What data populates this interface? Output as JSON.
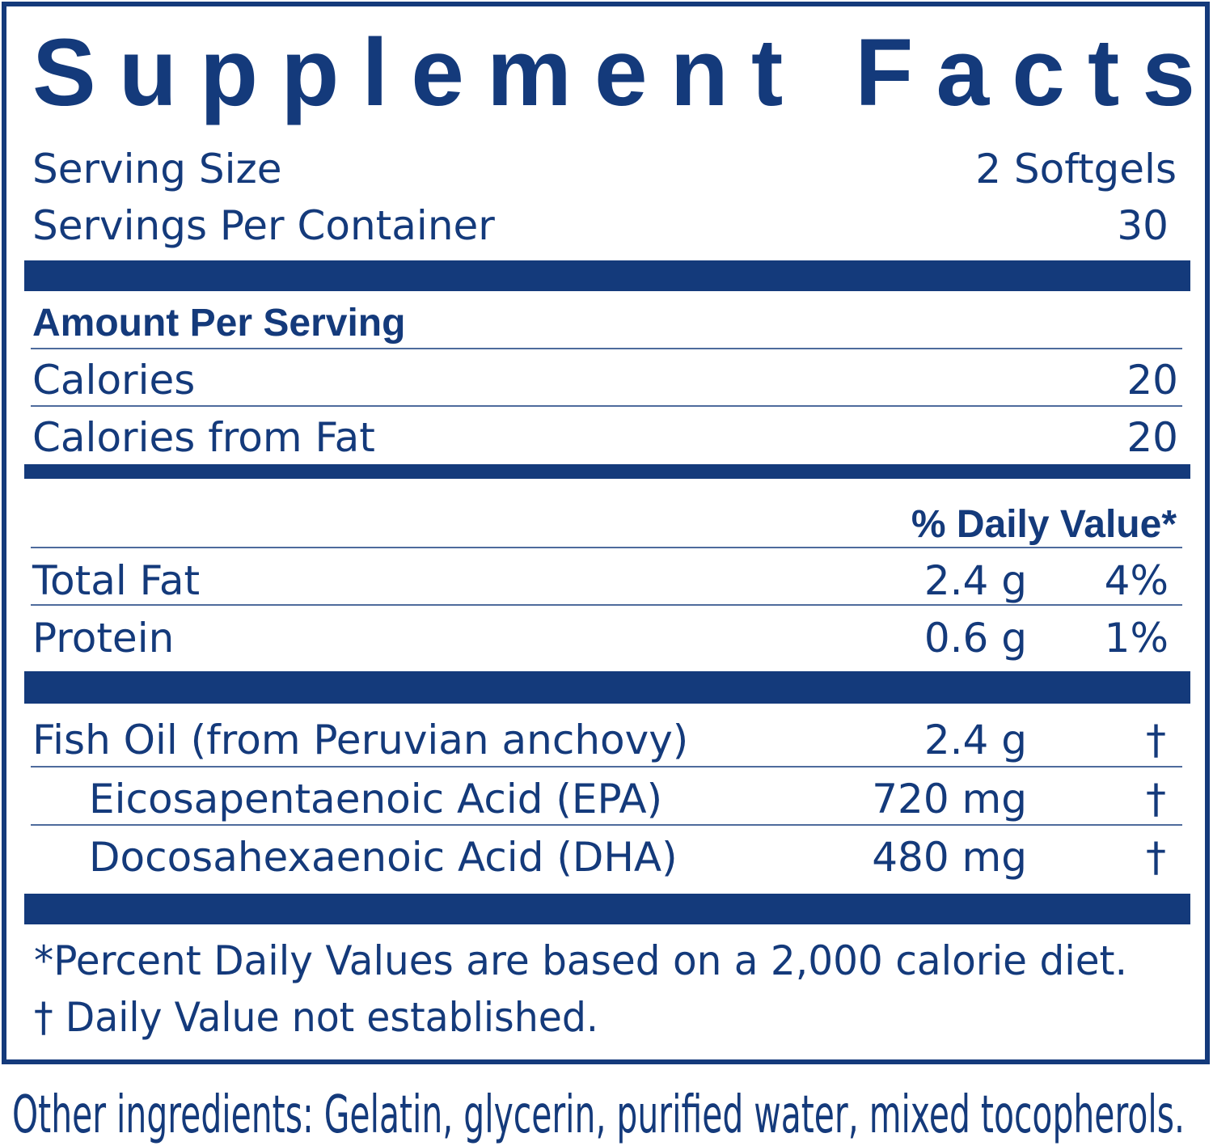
{
  "title": "Supplement Facts",
  "serving": {
    "size_label": "Serving Size",
    "size": "2 Softgels",
    "per_container_label": "Servings Per Container",
    "per_container": "30"
  },
  "amount_header": "Amount Per Serving",
  "calories": [
    {
      "label": "Calories",
      "amount": "20"
    },
    {
      "label": "Calories from Fat",
      "amount": "20"
    }
  ],
  "daily_value_header": "% Daily Value*",
  "nutrients": [
    {
      "label": "Total Fat",
      "amount": "2.4 g",
      "daily_value": "4%"
    },
    {
      "label": "Protein",
      "amount": "0.6 g",
      "daily_value": "1%"
    }
  ],
  "ingredients": {
    "main": {
      "label": "Fish Oil (from Peruvian anchovy)",
      "amount": "2.4 g",
      "daily_value": "†"
    },
    "sub": [
      {
        "label": "Eicosapentaenoic Acid (EPA)",
        "amount": "720 mg",
        "daily_value": "†"
      },
      {
        "label": "Docosahexaenoic Acid (DHA)",
        "amount": "480 mg",
        "daily_value": "†"
      }
    ]
  },
  "footnotes": [
    "*Percent Daily Values are based on a 2,000 calorie diet.",
    "† Daily Value not established."
  ],
  "other_ingredients": "Other ingredients: Gelatin, glycerin, purified water, mixed tocopherols."
}
